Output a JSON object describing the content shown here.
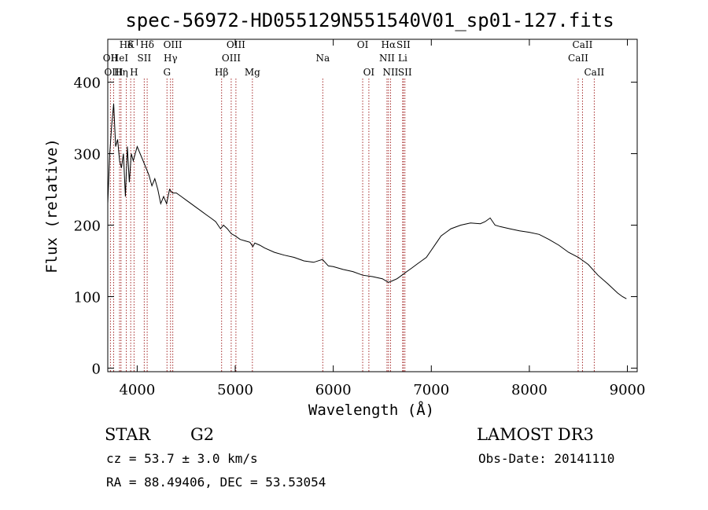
{
  "chart_data": {
    "type": "line",
    "title": "spec-56972-HD055129N551540V01_sp01-127.fits",
    "xlabel": "Wavelength (Å)",
    "ylabel": "Flux (relative)",
    "xlim": [
      3700,
      9100
    ],
    "ylim": [
      -5,
      460
    ],
    "xticks": [
      4000,
      5000,
      6000,
      7000,
      8000,
      9000
    ],
    "yticks": [
      0,
      100,
      200,
      300,
      400
    ],
    "grid": false,
    "series": [
      {
        "x": [
          3700,
          3720,
          3740,
          3760,
          3780,
          3800,
          3820,
          3840,
          3860,
          3880,
          3900,
          3920,
          3940,
          3960,
          3980,
          4000,
          4030,
          4060,
          4090,
          4120,
          4150,
          4180,
          4210,
          4240,
          4270,
          4300,
          4330,
          4360,
          4400,
          4450,
          4500,
          4550,
          4600,
          4650,
          4700,
          4750,
          4800,
          4850,
          4880,
          4920,
          4960,
          5000,
          5050,
          5100,
          5150,
          5180,
          5200,
          5250,
          5300,
          5400,
          5500,
          5600,
          5700,
          5800,
          5890,
          5950,
          6000,
          6100,
          6200,
          6300,
          6400,
          6500,
          6563,
          6600,
          6650,
          6700,
          6750,
          6800,
          6850,
          6900,
          6950,
          7000,
          7050,
          7100,
          7150,
          7200,
          7300,
          7400,
          7500,
          7550,
          7600,
          7650,
          7700,
          7800,
          7900,
          8000,
          8100,
          8200,
          8300,
          8400,
          8500,
          8600,
          8700,
          8800,
          8900,
          8950,
          8990
        ],
        "values": [
          230,
          300,
          340,
          370,
          310,
          320,
          290,
          280,
          300,
          240,
          310,
          260,
          300,
          290,
          300,
          310,
          300,
          290,
          280,
          270,
          255,
          265,
          250,
          230,
          240,
          230,
          250,
          245,
          245,
          240,
          235,
          230,
          225,
          220,
          215,
          210,
          205,
          195,
          200,
          195,
          188,
          185,
          180,
          178,
          176,
          170,
          175,
          172,
          168,
          162,
          158,
          155,
          150,
          148,
          152,
          143,
          142,
          138,
          135,
          130,
          128,
          125,
          120,
          122,
          125,
          130,
          135,
          140,
          145,
          150,
          155,
          165,
          175,
          185,
          190,
          195,
          200,
          203,
          202,
          205,
          210,
          200,
          198,
          195,
          192,
          190,
          187,
          180,
          172,
          162,
          155,
          145,
          130,
          118,
          105,
          100,
          97
        ]
      }
    ],
    "spectral_lines": [
      {
        "label": "Hδ",
        "row": 1,
        "x": [
          4102
        ]
      },
      {
        "label": "K",
        "row": 1,
        "x": [
          3934
        ]
      },
      {
        "label": "Hδ",
        "row": 1,
        "x": [
          3889
        ]
      },
      {
        "label": "OIII",
        "row": 1,
        "x": [
          4363
        ]
      },
      {
        "label": "OIII",
        "row": 1,
        "x": [
          5007
        ]
      },
      {
        "label": "OI",
        "row": 1,
        "x": [
          6300
        ]
      },
      {
        "label": "Hα",
        "row": 1,
        "x": [
          6563
        ]
      },
      {
        "label": "SII",
        "row": 1,
        "x": [
          6716
        ]
      },
      {
        "label": "CaII",
        "row": 1,
        "x": [
          8542
        ]
      },
      {
        "label": "OII",
        "row": 2,
        "x": [
          3727
        ]
      },
      {
        "label": "HeI",
        "row": 2,
        "x": [
          3820
        ]
      },
      {
        "label": "SII",
        "row": 2,
        "x": [
          4072
        ]
      },
      {
        "label": "Hγ",
        "row": 2,
        "x": [
          4340
        ]
      },
      {
        "label": "OIII",
        "row": 2,
        "x": [
          4959
        ]
      },
      {
        "label": "Na",
        "row": 2,
        "x": [
          5893
        ]
      },
      {
        "label": "NII",
        "row": 2,
        "x": [
          6548
        ]
      },
      {
        "label": "Li",
        "row": 2,
        "x": [
          6708
        ]
      },
      {
        "label": "CaII",
        "row": 2,
        "x": [
          8498
        ]
      },
      {
        "label": "OIII",
        "row": 3,
        "x": [
          3760
        ]
      },
      {
        "label": "Hη",
        "row": 3,
        "x": [
          3835
        ]
      },
      {
        "label": "H",
        "row": 3,
        "x": [
          3968
        ]
      },
      {
        "label": "G",
        "row": 3,
        "x": [
          4304
        ]
      },
      {
        "label": "Hβ",
        "row": 3,
        "x": [
          4861
        ]
      },
      {
        "label": "Mg",
        "row": 3,
        "x": [
          5175
        ]
      },
      {
        "label": "OI",
        "row": 3,
        "x": [
          6363
        ]
      },
      {
        "label": "NII",
        "row": 3,
        "x": [
          6584
        ]
      },
      {
        "label": "SII",
        "row": 3,
        "x": [
          6731
        ]
      },
      {
        "label": "CaII",
        "row": 3,
        "x": [
          8662
        ]
      }
    ]
  },
  "info": {
    "object_class": "STAR",
    "subclass": "G2",
    "survey": "LAMOST DR3",
    "cz": "cz = 53.7 ± 3.0 km/s",
    "obs_date": "Obs-Date: 20141110",
    "coords": "RA =  88.49406, DEC =  53.53054"
  },
  "colors": {
    "spectrum": "#000000",
    "line_markers": "#a52a2a",
    "axes": "#000000"
  }
}
